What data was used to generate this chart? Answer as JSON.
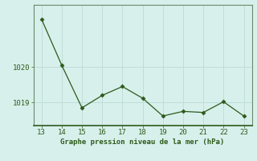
{
  "x": [
    13,
    14,
    15,
    16,
    17,
    18,
    19,
    20,
    21,
    22,
    23
  ],
  "y": [
    1021.35,
    1020.05,
    1018.85,
    1019.2,
    1019.45,
    1019.12,
    1018.62,
    1018.75,
    1018.72,
    1019.02,
    1018.62
  ],
  "line_color": "#2d5a1b",
  "marker_color": "#2d5a1b",
  "background_color": "#d8f0ec",
  "grid_color": "#c0ddd8",
  "axis_color": "#4a7a4a",
  "text_color": "#2d5a1b",
  "xlabel": "Graphe pression niveau de la mer (hPa)",
  "ylim": [
    1018.35,
    1021.75
  ],
  "xlim": [
    12.6,
    23.4
  ],
  "yticks": [
    1019,
    1020
  ],
  "xticks": [
    13,
    14,
    15,
    16,
    17,
    18,
    19,
    20,
    21,
    22,
    23
  ]
}
